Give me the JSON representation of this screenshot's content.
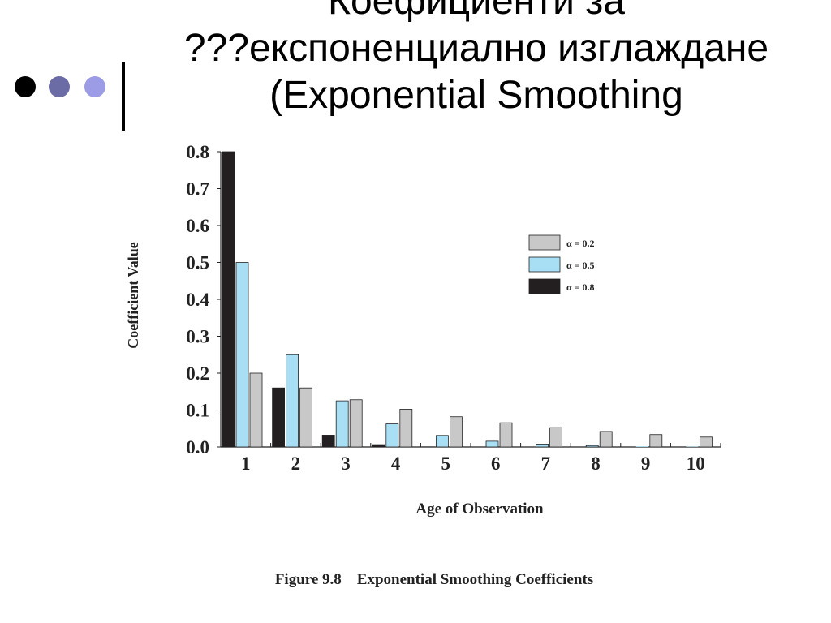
{
  "slide": {
    "title_lines": [
      "Коефициенти за",
      "???експоненциално изглаждане",
      "(Exponential Smoothing"
    ],
    "bullet_colors": [
      "#000000",
      "#6b6ba6",
      "#9b9be6"
    ]
  },
  "chart_data": {
    "type": "bar",
    "caption": "Figure 9.8    Exponential Smoothing Coefficients",
    "xlabel": "Age of Observation",
    "ylabel": "Coefficient Value",
    "ylim": [
      0,
      0.8
    ],
    "yticks": [
      "0.0",
      "0.1",
      "0.2",
      "0.3",
      "0.4",
      "0.5",
      "0.6",
      "0.7",
      "0.8"
    ],
    "categories": [
      "1",
      "2",
      "3",
      "4",
      "5",
      "6",
      "7",
      "8",
      "9",
      "10"
    ],
    "legend_position": "right",
    "series": [
      {
        "name": "α = 0.8",
        "color": "#231f20",
        "values": [
          0.8,
          0.16,
          0.032,
          0.0064,
          0.00128,
          0.000256,
          5.12e-05,
          1.02e-05,
          2e-06,
          4e-07
        ]
      },
      {
        "name": "α = 0.5",
        "color": "#a8dff5",
        "values": [
          0.5,
          0.25,
          0.125,
          0.0625,
          0.03125,
          0.015625,
          0.0078125,
          0.0039063,
          0.0019531,
          0.0009766
        ]
      },
      {
        "name": "α = 0.2",
        "color": "#c8c8c8",
        "values": [
          0.2,
          0.16,
          0.128,
          0.1024,
          0.08192,
          0.065536,
          0.0524288,
          0.041943,
          0.0335544,
          0.0268435
        ]
      }
    ],
    "legend_order": [
      "α = 0.2",
      "α = 0.5",
      "α = 0.8"
    ]
  }
}
